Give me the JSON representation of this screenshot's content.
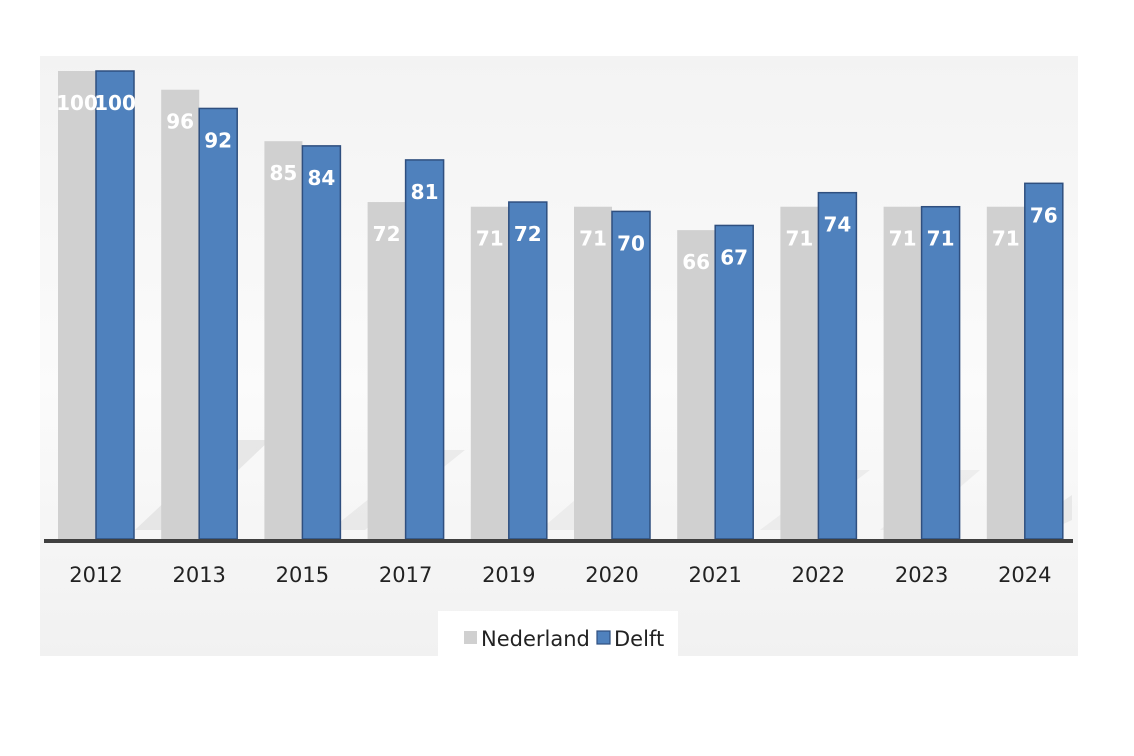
{
  "chart_data": {
    "type": "bar",
    "categories": [
      "2012",
      "2013",
      "2015",
      "2017",
      "2019",
      "2020",
      "2021",
      "2022",
      "2023",
      "2024"
    ],
    "series": [
      {
        "name": "Nederland",
        "values": [
          100,
          96,
          85,
          72,
          71,
          71,
          66,
          71,
          71,
          71
        ]
      },
      {
        "name": "Delft",
        "values": [
          100,
          92,
          84,
          81,
          72,
          70,
          67,
          74,
          71,
          76
        ]
      }
    ],
    "title": "",
    "xlabel": "",
    "ylabel": "",
    "ylim": [
      0,
      100
    ],
    "grid": false,
    "legend": "bottom-center",
    "colors": {
      "Nederland": "#d0d0d0",
      "Delft": "#4f81bd",
      "nederland_label": "#ffffff",
      "delft_label": "#ffffff",
      "axis": "#404040",
      "plot_bg": "#f2f2f2"
    }
  }
}
